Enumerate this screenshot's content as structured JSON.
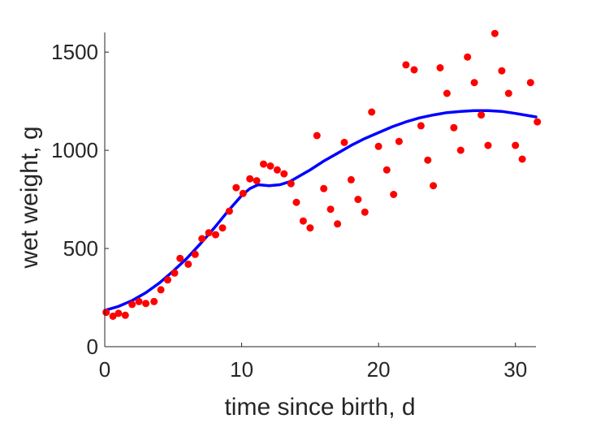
{
  "chart_data": {
    "type": "scatter",
    "title": "",
    "xlabel": "time since birth, d",
    "ylabel": "wet weight, g",
    "xlim": [
      0,
      31.5
    ],
    "ylim": [
      0,
      1600
    ],
    "xticks": [
      0,
      10,
      20,
      30
    ],
    "yticks": [
      0,
      500,
      1000,
      1500
    ],
    "grid": false,
    "legend": "none",
    "colors": {
      "points": "#ff0000",
      "line": "#0000ff",
      "axis": "#262626"
    },
    "series": [
      {
        "type": "scatter",
        "points": [
          [
            0.1,
            175
          ],
          [
            0.6,
            155
          ],
          [
            1.0,
            170
          ],
          [
            1.5,
            160
          ],
          [
            2.0,
            215
          ],
          [
            2.5,
            230
          ],
          [
            3.0,
            220
          ],
          [
            3.6,
            230
          ],
          [
            4.1,
            290
          ],
          [
            4.6,
            340
          ],
          [
            5.1,
            375
          ],
          [
            5.5,
            450
          ],
          [
            6.1,
            420
          ],
          [
            6.6,
            470
          ],
          [
            7.1,
            550
          ],
          [
            7.6,
            580
          ],
          [
            8.1,
            570
          ],
          [
            8.6,
            605
          ],
          [
            9.1,
            690
          ],
          [
            9.6,
            810
          ],
          [
            10.1,
            780
          ],
          [
            10.6,
            855
          ],
          [
            11.1,
            845
          ],
          [
            11.6,
            930
          ],
          [
            12.1,
            920
          ],
          [
            12.6,
            900
          ],
          [
            13.1,
            880
          ],
          [
            13.6,
            830
          ],
          [
            14.0,
            735
          ],
          [
            14.5,
            640
          ],
          [
            15.0,
            605
          ],
          [
            15.5,
            1075
          ],
          [
            16.0,
            805
          ],
          [
            16.5,
            700
          ],
          [
            17.0,
            625
          ],
          [
            17.5,
            1040
          ],
          [
            18.0,
            850
          ],
          [
            18.5,
            750
          ],
          [
            19.0,
            685
          ],
          [
            19.5,
            1195
          ],
          [
            20.0,
            1020
          ],
          [
            20.6,
            900
          ],
          [
            21.1,
            775
          ],
          [
            21.5,
            1045
          ],
          [
            22.0,
            1435
          ],
          [
            22.6,
            1410
          ],
          [
            23.1,
            1125
          ],
          [
            23.6,
            950
          ],
          [
            24.0,
            820
          ],
          [
            24.5,
            1420
          ],
          [
            25.0,
            1290
          ],
          [
            25.5,
            1115
          ],
          [
            26.0,
            1000
          ],
          [
            26.5,
            1475
          ],
          [
            27.0,
            1345
          ],
          [
            27.5,
            1180
          ],
          [
            28.0,
            1025
          ],
          [
            28.5,
            1595
          ],
          [
            29.0,
            1405
          ],
          [
            29.5,
            1290
          ],
          [
            30.0,
            1025
          ],
          [
            30.5,
            955
          ],
          [
            31.1,
            1345
          ],
          [
            31.6,
            1145
          ]
        ]
      },
      {
        "type": "line",
        "points": [
          [
            0,
            185
          ],
          [
            1,
            205
          ],
          [
            2,
            235
          ],
          [
            3,
            275
          ],
          [
            4,
            325
          ],
          [
            5,
            385
          ],
          [
            6,
            450
          ],
          [
            7,
            525
          ],
          [
            8,
            605
          ],
          [
            9,
            690
          ],
          [
            10,
            770
          ],
          [
            10.6,
            805
          ],
          [
            11.2,
            825
          ],
          [
            12,
            820
          ],
          [
            12.8,
            825
          ],
          [
            13.5,
            840
          ],
          [
            14,
            860
          ],
          [
            15,
            900
          ],
          [
            16,
            945
          ],
          [
            17,
            985
          ],
          [
            18,
            1025
          ],
          [
            19,
            1060
          ],
          [
            20,
            1090
          ],
          [
            21,
            1120
          ],
          [
            22,
            1145
          ],
          [
            23,
            1165
          ],
          [
            24,
            1180
          ],
          [
            25,
            1192
          ],
          [
            26,
            1198
          ],
          [
            27,
            1202
          ],
          [
            28,
            1202
          ],
          [
            29,
            1198
          ],
          [
            30,
            1188
          ],
          [
            31.5,
            1170
          ]
        ]
      }
    ]
  }
}
